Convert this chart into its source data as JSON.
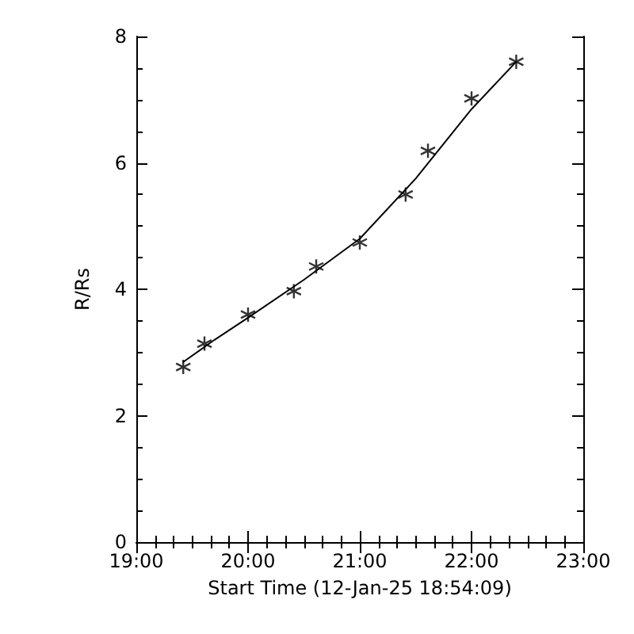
{
  "chart_data": {
    "type": "scatter",
    "xlabel": "Start Time (12-Jan-25 18:54:09)",
    "ylabel": "R/Rs",
    "xlim": [
      19,
      23
    ],
    "xticks": [
      {
        "value": 19,
        "label": "19:00"
      },
      {
        "value": 20,
        "label": "20:00"
      },
      {
        "value": 21,
        "label": "21:00"
      },
      {
        "value": 22,
        "label": "22:00"
      },
      {
        "value": 23,
        "label": "23:00"
      }
    ],
    "ylim": [
      0,
      8
    ],
    "yticks": [
      0,
      2,
      4,
      6,
      8
    ],
    "grid": false,
    "series": [
      {
        "color": "#000000",
        "marker": "cross",
        "x": [
          19.42,
          19.61,
          20.0,
          20.41,
          20.61,
          21.0,
          21.41,
          21.61,
          22.0,
          22.4
        ],
        "values": [
          2.77,
          3.14,
          3.6,
          3.97,
          4.36,
          4.74,
          5.5,
          6.19,
          7.02,
          7.6
        ]
      },
      {
        "type": "line",
        "color": "#000000",
        "marker": "none",
        "line_style": "solid",
        "x": [
          19.42,
          19.7,
          20.0,
          20.5,
          21.0,
          21.5,
          22.0,
          22.4
        ],
        "values": [
          2.85,
          3.2,
          3.55,
          4.15,
          4.8,
          5.75,
          6.85,
          7.6
        ]
      }
    ]
  }
}
